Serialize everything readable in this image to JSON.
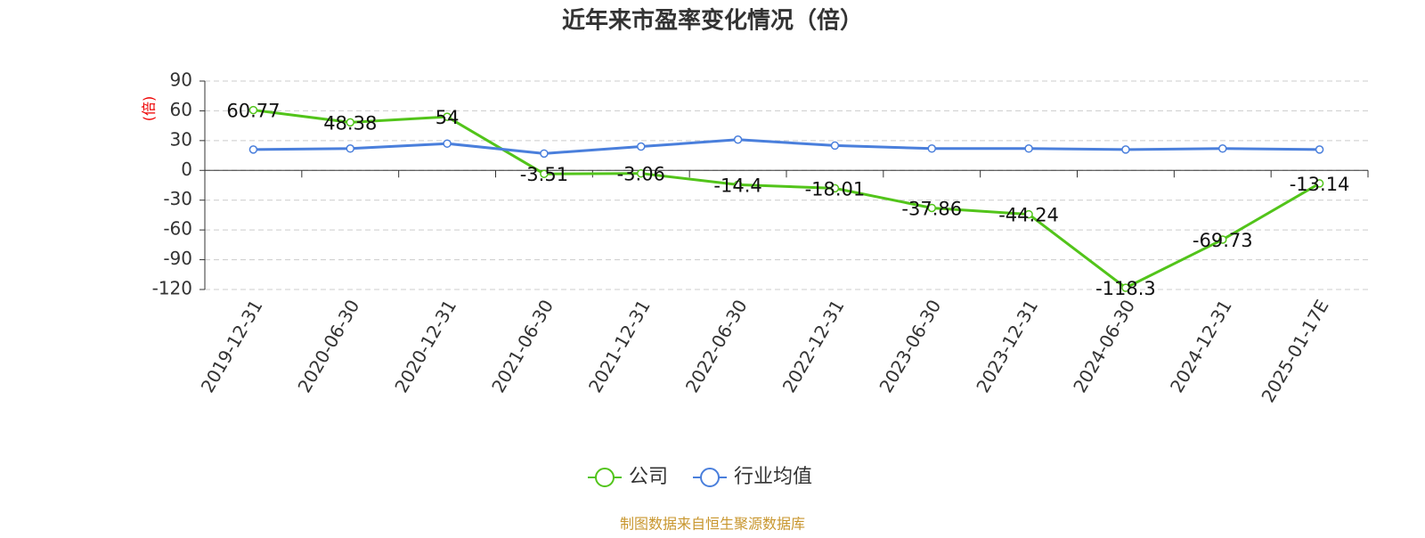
{
  "chart_data": {
    "type": "line",
    "title": "近年来市盈率变化情况（倍）",
    "y_label": "(倍)",
    "categories": [
      "2019-12-31",
      "2020-06-30",
      "2020-12-31",
      "2021-06-30",
      "2021-12-31",
      "2022-06-30",
      "2022-12-31",
      "2023-06-30",
      "2023-12-31",
      "2024-06-30",
      "2024-12-31",
      "2025-01-17E"
    ],
    "series": [
      {
        "name": "公司",
        "color": "#52c41a",
        "values": [
          60.77,
          48.38,
          54,
          -3.51,
          -3.06,
          -14.4,
          -18.01,
          -37.86,
          -44.24,
          -118.3,
          -69.73,
          -13.14
        ]
      },
      {
        "name": "行业均值",
        "color": "#4a7fdc",
        "values": [
          21,
          22,
          27,
          17,
          24,
          31,
          25,
          22,
          22,
          21,
          22,
          21
        ]
      }
    ],
    "ylim": [
      -120,
      90
    ],
    "yticks": [
      90,
      60,
      30,
      0,
      -30,
      -60,
      -90,
      -120
    ],
    "grid": true,
    "source": "制图数据来自恒生聚源数据库"
  }
}
